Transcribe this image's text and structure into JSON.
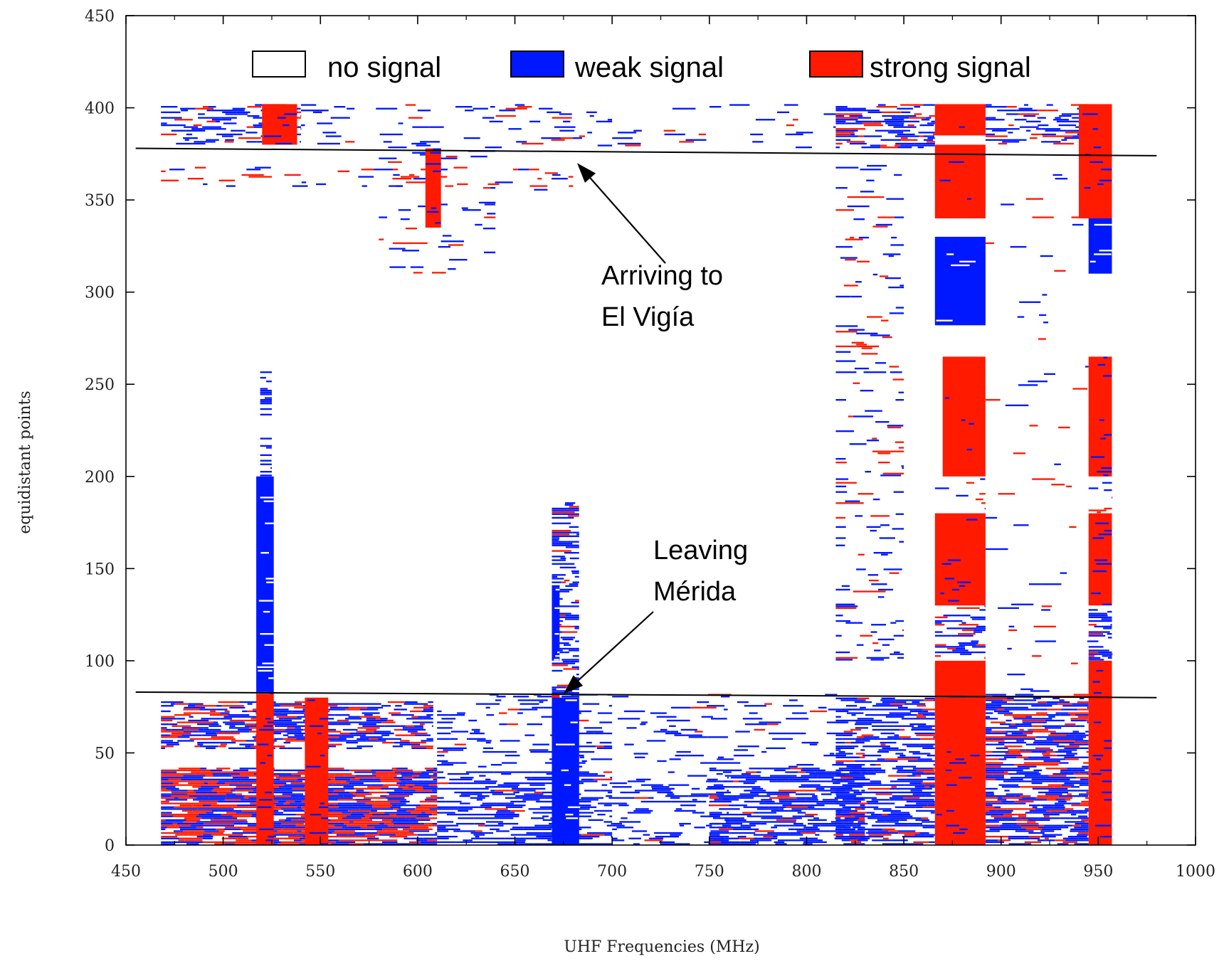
{
  "chart_data": {
    "type": "heatmap",
    "title": "",
    "xlabel": "UHF Frequencies (MHz)",
    "ylabel": "equidistant points",
    "xlim": [
      450,
      1000
    ],
    "ylim": [
      0,
      450
    ],
    "x_ticks": [
      "450",
      "500",
      "550",
      "600",
      "650",
      "700",
      "750",
      "800",
      "850",
      "900",
      "950",
      "1000"
    ],
    "y_ticks": [
      "0",
      "50",
      "100",
      "150",
      "200",
      "250",
      "300",
      "350",
      "400",
      "450"
    ],
    "grid": false,
    "legend_position": "top",
    "legend": [
      {
        "label": "no signal",
        "color": "#ffffff"
      },
      {
        "label": "weak signal",
        "color": "#0018ff"
      },
      {
        "label": "strong signal",
        "color": "#ff1a00"
      }
    ],
    "reference_lines": [
      {
        "x": [
          455,
          980
        ],
        "y": [
          378,
          374
        ]
      },
      {
        "x": [
          455,
          980
        ],
        "y": [
          83,
          80
        ]
      }
    ],
    "annotations": [
      {
        "lines": [
          "Arriving to",
          "El Vigía"
        ],
        "arrow_to": [
          682,
          370
        ]
      },
      {
        "lines": [
          "Leaving",
          "Mérida"
        ],
        "arrow_to": [
          675,
          82
        ]
      }
    ],
    "blocks": [
      {
        "level": "strong",
        "x": [
          866,
          892
        ],
        "y": [
          0,
          100
        ]
      },
      {
        "level": "strong",
        "x": [
          866,
          892
        ],
        "y": [
          130,
          180
        ]
      },
      {
        "level": "strong",
        "x": [
          870,
          892
        ],
        "y": [
          200,
          265
        ]
      },
      {
        "level": "strong",
        "x": [
          866,
          892
        ],
        "y": [
          340,
          380
        ]
      },
      {
        "level": "strong",
        "x": [
          866,
          892
        ],
        "y": [
          385,
          402
        ]
      },
      {
        "level": "strong",
        "x": [
          945,
          957
        ],
        "y": [
          0,
          100
        ]
      },
      {
        "level": "strong",
        "x": [
          945,
          957
        ],
        "y": [
          130,
          180
        ]
      },
      {
        "level": "strong",
        "x": [
          945,
          957
        ],
        "y": [
          200,
          265
        ]
      },
      {
        "level": "strong",
        "x": [
          940,
          957
        ],
        "y": [
          340,
          402
        ]
      },
      {
        "level": "strong",
        "x": [
          517,
          526
        ],
        "y": [
          0,
          82
        ]
      },
      {
        "level": "strong",
        "x": [
          542,
          554
        ],
        "y": [
          0,
          80
        ]
      },
      {
        "level": "strong",
        "x": [
          669,
          673
        ],
        "y": [
          0,
          82
        ]
      },
      {
        "level": "strong",
        "x": [
          520,
          538
        ],
        "y": [
          380,
          402
        ]
      },
      {
        "level": "strong",
        "x": [
          604,
          612
        ],
        "y": [
          335,
          378
        ]
      },
      {
        "level": "weak",
        "x": [
          669,
          683
        ],
        "y": [
          0,
          80
        ]
      },
      {
        "level": "weak",
        "x": [
          517,
          526
        ],
        "y": [
          82,
          200
        ]
      },
      {
        "level": "weak",
        "x": [
          669,
          673
        ],
        "y": [
          100,
          140
        ]
      },
      {
        "level": "weak",
        "x": [
          866,
          892
        ],
        "y": [
          282,
          330
        ]
      },
      {
        "level": "weak",
        "x": [
          945,
          957
        ],
        "y": [
          310,
          340
        ]
      }
    ],
    "density_regions": [
      {
        "x": [
          468,
          610
        ],
        "y": [
          0,
          42
        ],
        "density": 0.85,
        "strong_share": 0.45
      },
      {
        "x": [
          468,
          608
        ],
        "y": [
          52,
          78
        ],
        "density": 0.6,
        "strong_share": 0.3
      },
      {
        "x": [
          610,
          700
        ],
        "y": [
          0,
          40
        ],
        "density": 0.45,
        "strong_share": 0.05
      },
      {
        "x": [
          700,
          760
        ],
        "y": [
          0,
          40
        ],
        "density": 0.3,
        "strong_share": 0.05
      },
      {
        "x": [
          750,
          830
        ],
        "y": [
          0,
          42
        ],
        "density": 0.6,
        "strong_share": 0.08
      },
      {
        "x": [
          815,
          866
        ],
        "y": [
          0,
          80
        ],
        "density": 0.55,
        "strong_share": 0.12
      },
      {
        "x": [
          892,
          945
        ],
        "y": [
          0,
          82
        ],
        "density": 0.65,
        "strong_share": 0.3
      },
      {
        "x": [
          700,
          830
        ],
        "y": [
          42,
          82
        ],
        "density": 0.12,
        "strong_share": 0.15
      },
      {
        "x": [
          610,
          700
        ],
        "y": [
          42,
          82
        ],
        "density": 0.18,
        "strong_share": 0.1
      },
      {
        "x": [
          468,
          540
        ],
        "y": [
          380,
          402
        ],
        "density": 0.35,
        "strong_share": 0.2
      },
      {
        "x": [
          540,
          700
        ],
        "y": [
          378,
          402
        ],
        "density": 0.12,
        "strong_share": 0.2
      },
      {
        "x": [
          700,
          815
        ],
        "y": [
          378,
          402
        ],
        "density": 0.05,
        "strong_share": 0.3
      },
      {
        "x": [
          815,
          866
        ],
        "y": [
          378,
          402
        ],
        "density": 0.5,
        "strong_share": 0.3
      },
      {
        "x": [
          892,
          945
        ],
        "y": [
          380,
          402
        ],
        "density": 0.35,
        "strong_share": 0.3
      },
      {
        "x": [
          468,
          680
        ],
        "y": [
          355,
          368
        ],
        "density": 0.1,
        "strong_share": 0.5
      },
      {
        "x": [
          815,
          850
        ],
        "y": [
          100,
          372
        ],
        "density": 0.1,
        "strong_share": 0.35
      },
      {
        "x": [
          892,
          945
        ],
        "y": [
          150,
          372
        ],
        "density": 0.02,
        "strong_share": 0.4
      },
      {
        "x": [
          892,
          945
        ],
        "y": [
          82,
          150
        ],
        "density": 0.03,
        "strong_share": 0.4
      },
      {
        "x": [
          580,
          640
        ],
        "y": [
          310,
          378
        ],
        "density": 0.08,
        "strong_share": 0.3
      },
      {
        "x": [
          519,
          525
        ],
        "y": [
          200,
          258
        ],
        "density": 0.25,
        "strong_share": 0.0
      },
      {
        "x": [
          669,
          683
        ],
        "y": [
          82,
          188
        ],
        "density": 0.35,
        "strong_share": 0.2
      },
      {
        "x": [
          945,
          957
        ],
        "y": [
          100,
          130
        ],
        "density": 0.5,
        "strong_share": 0.3
      },
      {
        "x": [
          945,
          957
        ],
        "y": [
          180,
          200
        ],
        "density": 0.1,
        "strong_share": 0.3
      },
      {
        "x": [
          866,
          892
        ],
        "y": [
          100,
          130
        ],
        "density": 0.3,
        "strong_share": 0.3
      },
      {
        "x": [
          866,
          892
        ],
        "y": [
          180,
          200
        ],
        "density": 0.15,
        "strong_share": 0.3
      },
      {
        "x": [
          866,
          892
        ],
        "y": [
          265,
          282
        ],
        "density": 0.0,
        "strong_share": 0.3
      }
    ]
  }
}
